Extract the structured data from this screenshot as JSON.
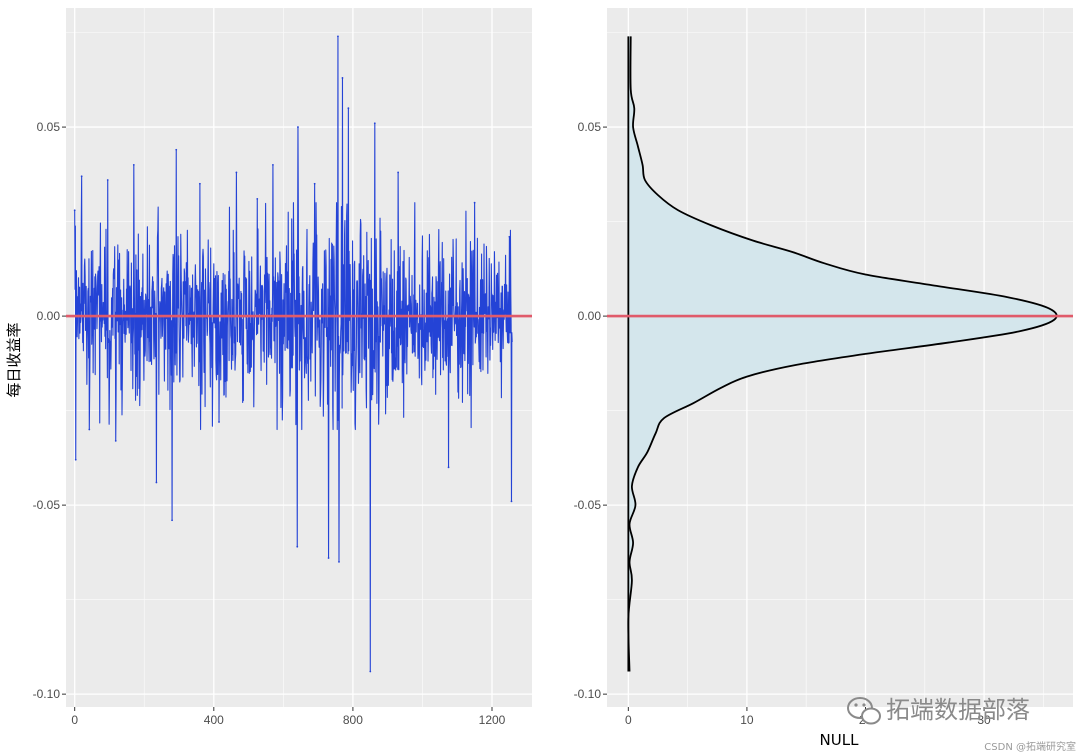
{
  "chart_data": [
    {
      "type": "line",
      "xlabel": "",
      "ylabel": "每日收益率",
      "x_ticks": [
        "0",
        "400",
        "800",
        "1200"
      ],
      "x_tick_values": [
        0,
        400,
        800,
        1200
      ],
      "y_ticks": [
        "-0.10",
        "-0.05",
        "0.00",
        "0.05"
      ],
      "y_tick_values": [
        -0.1,
        -0.05,
        0.0,
        0.05
      ],
      "xlim": [
        -25,
        1315
      ],
      "ylim": [
        -0.1034,
        0.0815
      ],
      "n_points": 1259,
      "peaks": [
        {
          "x": 0,
          "y": 0.028
        },
        {
          "x": 3,
          "y": -0.038
        },
        {
          "x": 20,
          "y": 0.037
        },
        {
          "x": 42,
          "y": -0.03
        },
        {
          "x": 95,
          "y": 0.036
        },
        {
          "x": 118,
          "y": -0.033
        },
        {
          "x": 170,
          "y": 0.04
        },
        {
          "x": 235,
          "y": -0.044
        },
        {
          "x": 280,
          "y": -0.054
        },
        {
          "x": 292,
          "y": 0.044
        },
        {
          "x": 360,
          "y": 0.035
        },
        {
          "x": 415,
          "y": -0.028
        },
        {
          "x": 465,
          "y": 0.038
        },
        {
          "x": 525,
          "y": 0.031
        },
        {
          "x": 570,
          "y": 0.04
        },
        {
          "x": 640,
          "y": -0.061
        },
        {
          "x": 642,
          "y": 0.05
        },
        {
          "x": 690,
          "y": 0.035
        },
        {
          "x": 730,
          "y": -0.064
        },
        {
          "x": 757,
          "y": 0.074
        },
        {
          "x": 760,
          "y": -0.065
        },
        {
          "x": 770,
          "y": 0.063
        },
        {
          "x": 787,
          "y": 0.055
        },
        {
          "x": 850,
          "y": -0.094
        },
        {
          "x": 863,
          "y": 0.051
        },
        {
          "x": 930,
          "y": 0.038
        },
        {
          "x": 1075,
          "y": -0.04
        },
        {
          "x": 1150,
          "y": 0.03
        },
        {
          "x": 1250,
          "y": 0.021
        },
        {
          "x": 1256,
          "y": -0.049
        }
      ],
      "reference_line_y": 0.0,
      "series_color": "#2443d6",
      "reference_color": "#e05a6a",
      "panel_background": "#ebebeb",
      "grid": true
    },
    {
      "type": "area",
      "xlabel": "NULL",
      "ylabel": "",
      "x_ticks": [
        "0",
        "10",
        "20",
        "30"
      ],
      "x_tick_values": [
        0,
        10,
        20,
        30
      ],
      "y_ticks": [
        "-0.10",
        "-0.05",
        "0.00",
        "0.05"
      ],
      "y_tick_values": [
        -0.1,
        -0.05,
        0.0,
        0.05
      ],
      "xlim": [
        -1.8,
        37.5
      ],
      "ylim": [
        -0.1034,
        0.0815
      ],
      "density": [
        {
          "y": 0.074,
          "x": 0.2
        },
        {
          "y": 0.06,
          "x": 0.2
        },
        {
          "y": 0.055,
          "x": 0.5
        },
        {
          "y": 0.05,
          "x": 0.4
        },
        {
          "y": 0.045,
          "x": 0.8
        },
        {
          "y": 0.04,
          "x": 1.2
        },
        {
          "y": 0.036,
          "x": 1.4
        },
        {
          "y": 0.032,
          "x": 2.5
        },
        {
          "y": 0.028,
          "x": 4.2
        },
        {
          "y": 0.024,
          "x": 7.0
        },
        {
          "y": 0.02,
          "x": 10.5
        },
        {
          "y": 0.017,
          "x": 13.8
        },
        {
          "y": 0.014,
          "x": 16.5
        },
        {
          "y": 0.011,
          "x": 20.0
        },
        {
          "y": 0.008,
          "x": 26.0
        },
        {
          "y": 0.005,
          "x": 32.0
        },
        {
          "y": 0.002,
          "x": 35.5
        },
        {
          "y": -0.001,
          "x": 35.9
        },
        {
          "y": -0.004,
          "x": 33.0
        },
        {
          "y": -0.007,
          "x": 27.0
        },
        {
          "y": -0.01,
          "x": 20.0
        },
        {
          "y": -0.013,
          "x": 14.0
        },
        {
          "y": -0.016,
          "x": 10.0
        },
        {
          "y": -0.019,
          "x": 7.8
        },
        {
          "y": -0.023,
          "x": 5.5
        },
        {
          "y": -0.027,
          "x": 3.0
        },
        {
          "y": -0.031,
          "x": 2.3
        },
        {
          "y": -0.036,
          "x": 1.6
        },
        {
          "y": -0.04,
          "x": 0.8
        },
        {
          "y": -0.045,
          "x": 0.3
        },
        {
          "y": -0.05,
          "x": 0.6
        },
        {
          "y": -0.055,
          "x": 0.1
        },
        {
          "y": -0.06,
          "x": 0.4
        },
        {
          "y": -0.065,
          "x": 0.1
        },
        {
          "y": -0.07,
          "x": 0.3
        },
        {
          "y": -0.08,
          "x": 0.0
        },
        {
          "y": -0.094,
          "x": 0.1
        }
      ],
      "reference_line_y": 0.0,
      "fill_color": "#d4e6ec",
      "line_color": "#000000",
      "reference_color": "#e05a6a",
      "panel_background": "#ebebeb",
      "grid": true
    }
  ],
  "watermark": {
    "text": "拓端数据部落",
    "icon": "wechat-icon",
    "credit": "CSDN @拓端研究室"
  }
}
